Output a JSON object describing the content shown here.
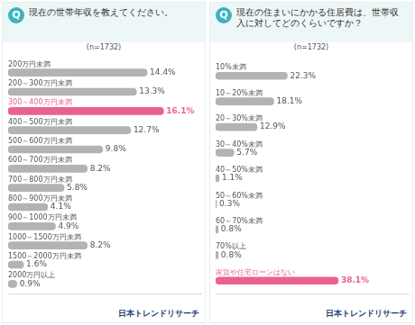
{
  "chart_data": [
    {
      "type": "bar",
      "orientation": "horizontal",
      "title": "現在の世帯年収を教えてください。",
      "subtitle": "(n=1732)",
      "annotations": [
        "Q",
        "日本トレンドリサーチ"
      ],
      "categories": [
        "200万円未満",
        "200～300万円未満",
        "300～400万円未満",
        "400～500万円未満",
        "500～600万円未満",
        "600～700万円未満",
        "700～800万円未満",
        "800～900万円未満",
        "900～1000万円未満",
        "1000～1500万円未満",
        "1500～2000万円未満",
        "2000万円以上"
      ],
      "values": [
        14.4,
        13.3,
        16.1,
        12.7,
        9.8,
        8.2,
        5.8,
        4.1,
        4.9,
        8.2,
        1.6,
        0.9
      ],
      "value_labels": [
        "14.4%",
        "13.3%",
        "16.1%",
        "12.7%",
        "9.8%",
        "8.2%",
        "5.8%",
        "4.1%",
        "4.9%",
        "8.2%",
        "1.6%",
        "0.9%"
      ],
      "colors": [
        "#b3b3b3",
        "#b3b3b3",
        "#e9618f",
        "#b3b3b3",
        "#b3b3b3",
        "#b3b3b3",
        "#b3b3b3",
        "#b3b3b3",
        "#b3b3b3",
        "#b3b3b3",
        "#b3b3b3",
        "#b3b3b3"
      ],
      "xlim": [
        0,
        20
      ],
      "grid": false,
      "data_labels": true,
      "tick_labels": false
    },
    {
      "type": "bar",
      "orientation": "horizontal",
      "title": "現在の住まいにかかる住居費は、世帯収入に対してどのくらいですか？",
      "subtitle": "(n=1732)",
      "annotations": [
        "Q",
        "日本トレンドリサーチ"
      ],
      "categories": [
        "10%未満",
        "10～20%未満",
        "20～30%未満",
        "30～40%未満",
        "40～50%未満",
        "50～60%未満",
        "60～70%未満",
        "70%以上",
        "家賃や住宅ローンはない"
      ],
      "values": [
        22.3,
        18.1,
        12.9,
        5.7,
        1.1,
        0.3,
        0.8,
        0.8,
        38.1
      ],
      "value_labels": [
        "22.3%",
        "18.1%",
        "12.9%",
        "5.7%",
        "1.1%",
        "0.3%",
        "0.8%",
        "0.8%",
        "38.1%"
      ],
      "colors": [
        "#b3b3b3",
        "#b3b3b3",
        "#b3b3b3",
        "#b3b3b3",
        "#b3b3b3",
        "#b3b3b3",
        "#b3b3b3",
        "#b3b3b3",
        "#e9618f"
      ],
      "xlim": [
        0,
        60
      ],
      "grid": false,
      "data_labels": true,
      "tick_labels": false
    }
  ]
}
